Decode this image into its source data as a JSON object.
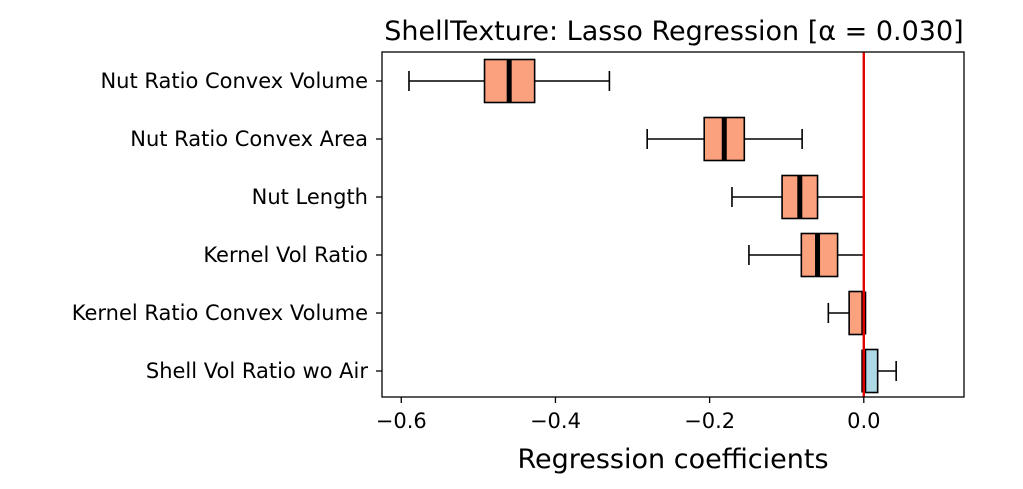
{
  "chart_data": {
    "type": "boxplot",
    "orientation": "horizontal",
    "title": "ShellTexture: Lasso Regression [α = 0.030]",
    "xlabel": "Regression coefficients",
    "ylabel": "",
    "xlim": [
      -0.625,
      0.13
    ],
    "xticks": [
      -0.6,
      -0.4,
      -0.2,
      0.0
    ],
    "xtick_labels": [
      "−0.6",
      "−0.4",
      "−0.2",
      "0.0"
    ],
    "grid": false,
    "reference_line": {
      "x": 0.0,
      "color": "#e00000"
    },
    "colors": {
      "negative": "#fca17d",
      "positive": "#add8e6",
      "median": "#000000"
    },
    "categories": [
      "Nut Ratio Convex Volume",
      "Nut Ratio Convex Area",
      "Nut Length",
      "Kernel Vol Ratio",
      "Kernel Ratio Convex Volume",
      "Shell Vol Ratio wo Air"
    ],
    "boxes": [
      {
        "label": "Nut Ratio Convex Volume",
        "whisker_low": -0.59,
        "q1": -0.492,
        "median": -0.46,
        "q3": -0.427,
        "whisker_high": -0.33,
        "sign": "negative"
      },
      {
        "label": "Nut Ratio Convex Area",
        "whisker_low": -0.281,
        "q1": -0.207,
        "median": -0.181,
        "q3": -0.155,
        "whisker_high": -0.08,
        "sign": "negative"
      },
      {
        "label": "Nut Length",
        "whisker_low": -0.171,
        "q1": -0.106,
        "median": -0.083,
        "q3": -0.06,
        "whisker_high": 0.0,
        "sign": "negative"
      },
      {
        "label": "Kernel Vol Ratio",
        "whisker_low": -0.149,
        "q1": -0.081,
        "median": -0.06,
        "q3": -0.034,
        "whisker_high": 0.0,
        "sign": "negative"
      },
      {
        "label": "Kernel Ratio Convex Volume",
        "whisker_low": -0.046,
        "q1": -0.019,
        "median": 0.0,
        "q3": 0.0,
        "whisker_high": 0.0,
        "sign": "negative"
      },
      {
        "label": "Shell Vol Ratio wo Air",
        "whisker_low": 0.0,
        "q1": 0.0,
        "median": 0.0,
        "q3": 0.018,
        "whisker_high": 0.042,
        "sign": "positive"
      }
    ]
  }
}
